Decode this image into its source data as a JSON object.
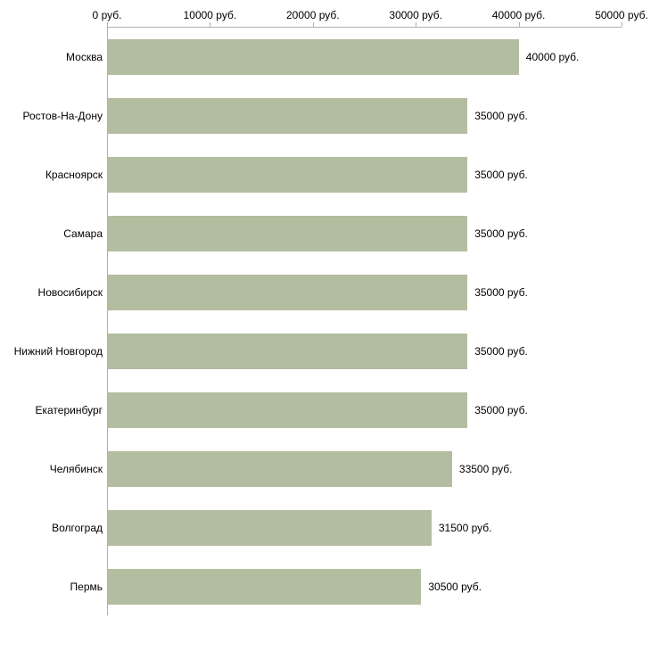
{
  "chart_data": {
    "type": "bar",
    "orientation": "horizontal",
    "title": "",
    "categories": [
      "Москва",
      "Ростов-На-Дону",
      "Красноярск",
      "Самара",
      "Новосибирск",
      "Нижний Новгород",
      "Екатеринбург",
      "Челябинск",
      "Волгоград",
      "Пермь"
    ],
    "values": [
      40000,
      35000,
      35000,
      35000,
      35000,
      35000,
      35000,
      33500,
      31500,
      30500
    ],
    "value_labels": [
      "40000 руб.",
      "35000 руб.",
      "35000 руб.",
      "35000 руб.",
      "35000 руб.",
      "35000 руб.",
      "35000 руб.",
      "33500 руб.",
      "31500 руб.",
      "30500 руб."
    ],
    "x_axis": {
      "position": "top",
      "min": 0,
      "max": 50000,
      "ticks": [
        0,
        10000,
        20000,
        30000,
        40000,
        50000
      ],
      "tick_labels": [
        "0 руб.",
        "10000 руб.",
        "20000 руб.",
        "30000 руб.",
        "40000 руб.",
        "50000 руб."
      ]
    },
    "ylabel": "",
    "xlabel": "",
    "legend": "none",
    "grid": "off",
    "bar_color": "#b3bda0",
    "axis_color": "#b0b0b0",
    "text_color": "#000000",
    "background_color": "#ffffff"
  }
}
